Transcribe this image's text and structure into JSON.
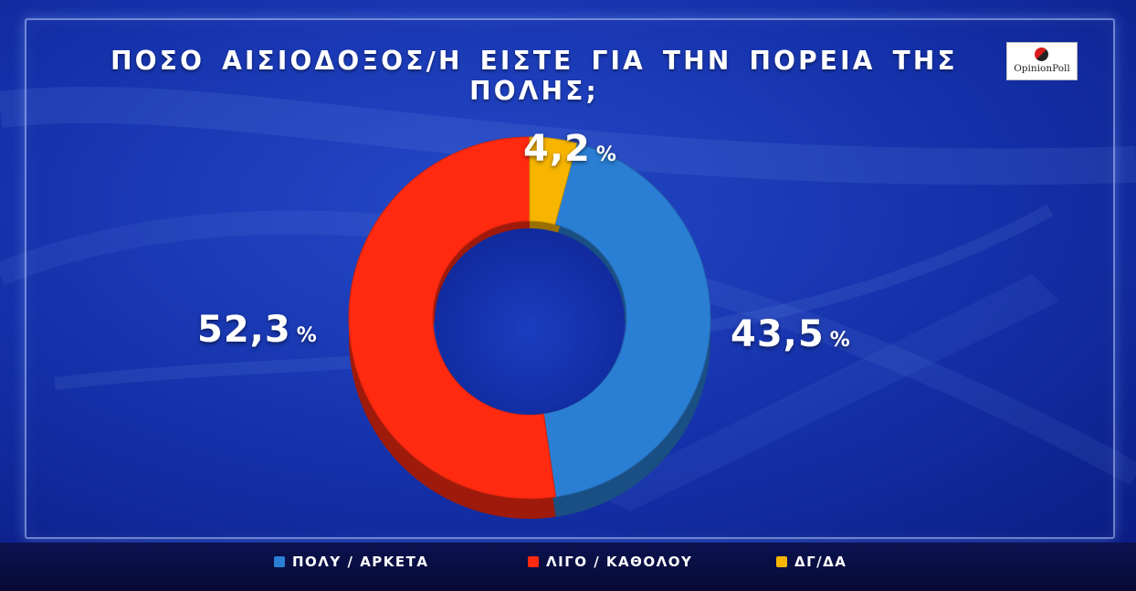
{
  "title": "ΠΟΣΟ ΑΙΣΙΟΔΟΞΟΣ/Η ΕΙΣΤΕ ΓΙΑ ΤΗΝ ΠΟΡΕΙΑ ΤΗΣ ΠΟΛΗΣ;",
  "logo": {
    "text": "OpinionPoll"
  },
  "chart_data": {
    "type": "pie",
    "title": "ΠΟΣΟ ΑΙΣΙΟΔΟΞΟΣ/Η ΕΙΣΤΕ ΓΙΑ ΤΗΝ ΠΟΡΕΙΑ ΤΗΣ ΠΟΛΗΣ;",
    "donut": true,
    "legend_position": "bottom",
    "categories": [
      "ΠΟΛΥ / ΑΡΚΕΤΑ",
      "ΛΙΓΟ / ΚΑΘΟΛΟΥ",
      "ΔΓ/ΔΑ"
    ],
    "values": [
      43.5,
      52.3,
      4.2
    ],
    "value_labels": [
      "43,5",
      "52,3",
      "4,2"
    ],
    "unit": "%",
    "colors": [
      "#2a7fd4",
      "#ff2a10",
      "#f7b500"
    ]
  }
}
